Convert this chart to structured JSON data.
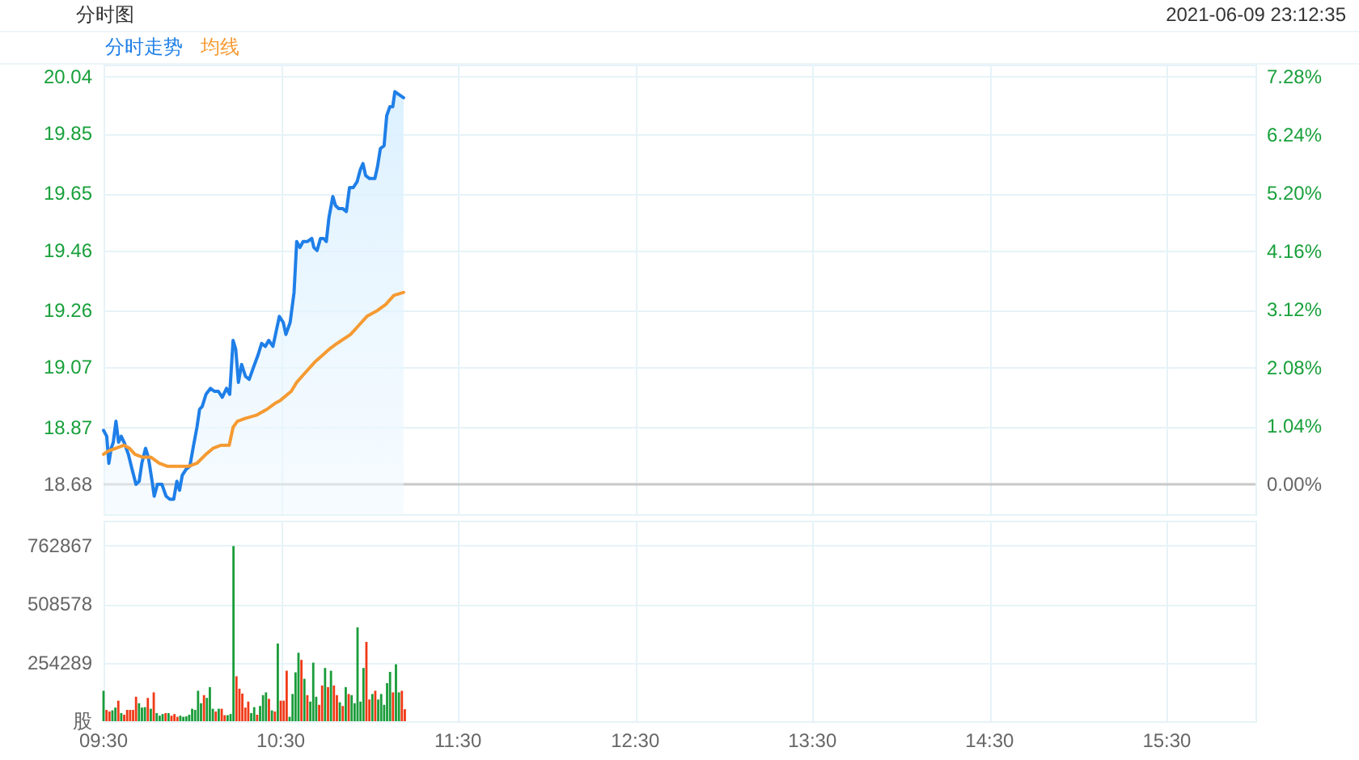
{
  "chart_data": [
    {
      "type": "line",
      "title": "分时图",
      "annotations": [
        "2021-06-09 23:12:35"
      ],
      "legend": "top left",
      "grid": true,
      "tick_labels": "y",
      "xlim": [
        9.5,
        16
      ],
      "ylim": [
        18.58,
        20.08
      ],
      "yticks": [
        {
          "value": 18.68,
          "label": "18.68"
        },
        {
          "value": 18.87,
          "label": "18.87"
        },
        {
          "value": 19.07,
          "label": "19.07"
        },
        {
          "value": 19.26,
          "label": "19.26"
        },
        {
          "value": 19.46,
          "label": "19.46"
        },
        {
          "value": 19.65,
          "label": "19.65"
        },
        {
          "value": 19.85,
          "label": "19.85"
        },
        {
          "value": 20.04,
          "label": "20.04"
        }
      ],
      "y2lim": [
        -0.54,
        7.49
      ],
      "y2ticks": [
        {
          "value": 0,
          "label": "0.00%"
        },
        {
          "value": 1.04,
          "label": "1.04%"
        },
        {
          "value": 2.08,
          "label": "2.08%"
        },
        {
          "value": 3.12,
          "label": "3.12%"
        },
        {
          "value": 4.16,
          "label": "4.16%"
        },
        {
          "value": 5.2,
          "label": "5.20%"
        },
        {
          "value": 6.24,
          "label": "6.24%"
        },
        {
          "value": 7.28,
          "label": "7.28%"
        }
      ],
      "ref_lines": [
        {
          "axis": "y",
          "value": 18.68,
          "color": "#c8c8c8"
        }
      ],
      "series": [
        {
          "name": "分时走势",
          "type": "area",
          "color": "#1f7fe8",
          "x": [
            9.5,
            9.518,
            9.53,
            9.543,
            9.555,
            9.57,
            9.585,
            9.6,
            9.616,
            9.64,
            9.661,
            9.683,
            9.701,
            9.716,
            9.737,
            9.753,
            9.774,
            9.786,
            9.804,
            9.829,
            9.853,
            9.874,
            9.896,
            9.914,
            9.929,
            9.944,
            9.966,
            9.987,
            10.005,
            10.027,
            10.042,
            10.057,
            10.078,
            10.103,
            10.127,
            10.148,
            10.17,
            10.194,
            10.212,
            10.231,
            10.246,
            10.261,
            10.279,
            10.301,
            10.322,
            10.346,
            10.371,
            10.392,
            10.413,
            10.432,
            10.456,
            10.474,
            10.492,
            10.514,
            10.529,
            10.553,
            10.575,
            10.59,
            10.608,
            10.626,
            10.651,
            10.675,
            10.687,
            10.705,
            10.724,
            10.742,
            10.757,
            10.772,
            10.794,
            10.809,
            10.827,
            10.849,
            10.87,
            10.888,
            10.909,
            10.931,
            10.949,
            10.964,
            10.979,
            11.001,
            11.031,
            11.046,
            11.062,
            11.083,
            11.098,
            11.116,
            11.132,
            11.144,
            11.168,
            11.193
          ],
          "values": [
            18.86,
            18.84,
            18.75,
            18.8,
            18.82,
            18.89,
            18.82,
            18.84,
            18.82,
            18.78,
            18.73,
            18.68,
            18.69,
            18.75,
            18.8,
            18.77,
            18.69,
            18.64,
            18.68,
            18.68,
            18.64,
            18.63,
            18.63,
            18.69,
            18.66,
            18.71,
            18.73,
            18.74,
            18.8,
            18.87,
            18.93,
            18.94,
            18.98,
            19.0,
            18.99,
            18.99,
            18.97,
            19.0,
            18.98,
            19.16,
            19.13,
            19.02,
            19.08,
            19.04,
            19.03,
            19.07,
            19.11,
            19.15,
            19.14,
            19.16,
            19.14,
            19.19,
            19.24,
            19.22,
            19.18,
            19.22,
            19.32,
            19.49,
            19.47,
            19.49,
            19.49,
            19.5,
            19.47,
            19.46,
            19.5,
            19.5,
            19.49,
            19.57,
            19.64,
            19.61,
            19.6,
            19.6,
            19.59,
            19.67,
            19.67,
            19.69,
            19.73,
            19.75,
            19.71,
            19.7,
            19.7,
            19.74,
            19.8,
            19.81,
            19.91,
            19.94,
            19.94,
            19.99,
            19.98,
            19.97
          ]
        },
        {
          "name": "均线",
          "type": "line",
          "color": "#f59a32",
          "x": [
            9.5,
            9.524,
            9.57,
            9.616,
            9.646,
            9.677,
            9.722,
            9.768,
            9.814,
            9.859,
            9.92,
            9.981,
            10.027,
            10.078,
            10.118,
            10.164,
            10.209,
            10.231,
            10.255,
            10.301,
            10.361,
            10.422,
            10.468,
            10.498,
            10.559,
            10.59,
            10.635,
            10.696,
            10.772,
            10.818,
            10.894,
            10.94,
            10.986,
            11.046,
            11.092,
            11.138,
            11.193
          ],
          "values": [
            18.78,
            18.79,
            18.8,
            18.81,
            18.8,
            18.78,
            18.77,
            18.77,
            18.75,
            18.74,
            18.74,
            18.74,
            18.75,
            18.78,
            18.8,
            18.81,
            18.81,
            18.87,
            18.89,
            18.9,
            18.91,
            18.93,
            18.95,
            18.96,
            18.99,
            19.02,
            19.05,
            19.09,
            19.13,
            19.15,
            19.18,
            19.21,
            19.24,
            19.26,
            19.28,
            19.31,
            19.32
          ]
        }
      ]
    },
    {
      "type": "bar",
      "grid": true,
      "xlim": [
        9.5,
        16
      ],
      "xticks": [
        {
          "value": 9.5,
          "label": "09:30"
        },
        {
          "value": 10.5,
          "label": "10:30"
        },
        {
          "value": 11.5,
          "label": "11:30"
        },
        {
          "value": 12.5,
          "label": "12:30"
        },
        {
          "value": 13.5,
          "label": "13:30"
        },
        {
          "value": 14.5,
          "label": "14:30"
        },
        {
          "value": 15.5,
          "label": "15:30"
        }
      ],
      "ylim": [
        0,
        870000
      ],
      "yticks": [
        {
          "value": 0,
          "label": "股"
        },
        254289,
        508578,
        762867
      ],
      "x": [
        9.5,
        9.5167,
        9.5333,
        9.55,
        9.5667,
        9.5833,
        9.6,
        9.6167,
        9.6333,
        9.65,
        9.6667,
        9.6833,
        9.7,
        9.7167,
        9.7333,
        9.75,
        9.7667,
        9.7833,
        9.8,
        9.8167,
        9.8333,
        9.85,
        9.8667,
        9.8833,
        9.9,
        9.9167,
        9.9333,
        9.95,
        9.9667,
        9.9833,
        10.0,
        10.0167,
        10.0333,
        10.05,
        10.0667,
        10.0833,
        10.1,
        10.1167,
        10.1333,
        10.15,
        10.1667,
        10.1833,
        10.2,
        10.2167,
        10.2333,
        10.25,
        10.2667,
        10.2833,
        10.3,
        10.3167,
        10.3333,
        10.35,
        10.3667,
        10.3833,
        10.4,
        10.4167,
        10.4333,
        10.45,
        10.4667,
        10.4833,
        10.5,
        10.5167,
        10.5333,
        10.55,
        10.5667,
        10.5833,
        10.6,
        10.6167,
        10.6333,
        10.65,
        10.6667,
        10.6833,
        10.7,
        10.7167,
        10.7333,
        10.75,
        10.7667,
        10.7833,
        10.8,
        10.8167,
        10.8333,
        10.85,
        10.8667,
        10.8833,
        10.9,
        10.9167,
        10.9333,
        10.95,
        10.9667,
        10.9833,
        11.0,
        11.0167,
        11.0333,
        11.05,
        11.0667,
        11.0833,
        11.1,
        11.1167,
        11.1333,
        11.15,
        11.1667,
        11.1833,
        11.2
      ],
      "values": [
        132000,
        49000,
        42000,
        47000,
        59000,
        89000,
        35000,
        28000,
        49000,
        49000,
        49000,
        106000,
        78000,
        59000,
        61000,
        101000,
        54000,
        125000,
        35000,
        24000,
        31000,
        35000,
        35000,
        24000,
        31000,
        19000,
        24000,
        19000,
        21000,
        28000,
        54000,
        49000,
        132000,
        78000,
        113000,
        101000,
        148000,
        54000,
        42000,
        54000,
        54000,
        26000,
        26000,
        31000,
        760000,
        195000,
        141000,
        120000,
        59000,
        85000,
        35000,
        61000,
        28000,
        66000,
        113000,
        125000,
        97000,
        47000,
        42000,
        337000,
        89000,
        89000,
        219000,
        19000,
        118000,
        212000,
        297000,
        266000,
        184000,
        113000,
        85000,
        254000,
        106000,
        71000,
        155000,
        231000,
        148000,
        219000,
        155000,
        113000,
        82000,
        66000,
        148000,
        118000,
        113000,
        78000,
        407000,
        85000,
        231000,
        344000,
        94000,
        118000,
        132000,
        94000,
        118000,
        71000,
        165000,
        214000,
        125000,
        247000,
        125000,
        132000,
        52000
      ],
      "colors": [
        "#1a9c3a",
        "#f03a17",
        "#f03a17",
        "#1a9c3a",
        "#1a9c3a",
        "#f03a17",
        "#1a9c3a",
        "#f03a17",
        "#f03a17",
        "#f03a17",
        "#f03a17",
        "#f03a17",
        "#1a9c3a",
        "#1a9c3a",
        "#1a9c3a",
        "#f03a17",
        "#1a9c3a",
        "#f03a17",
        "#1a9c3a",
        "#1a9c3a",
        "#1a9c3a",
        "#f03a17",
        "#1a9c3a",
        "#f03a17",
        "#f03a17",
        "#f03a17",
        "#1a9c3a",
        "#1a9c3a",
        "#1a9c3a",
        "#1a9c3a",
        "#1a9c3a",
        "#1a9c3a",
        "#1a9c3a",
        "#1a9c3a",
        "#f03a17",
        "#1a9c3a",
        "#1a9c3a",
        "#1a9c3a",
        "#f03a17",
        "#1a9c3a",
        "#f03a17",
        "#f03a17",
        "#1a9c3a",
        "#1a9c3a",
        "#1a9c3a",
        "#f03a17",
        "#f03a17",
        "#f03a17",
        "#f03a17",
        "#f03a17",
        "#1a9c3a",
        "#1a9c3a",
        "#f03a17",
        "#1a9c3a",
        "#1a9c3a",
        "#1a9c3a",
        "#f03a17",
        "#1a9c3a",
        "#f03a17",
        "#1a9c3a",
        "#f03a17",
        "#f03a17",
        "#f03a17",
        "#1a9c3a",
        "#1a9c3a",
        "#1a9c3a",
        "#1a9c3a",
        "#f03a17",
        "#1a9c3a",
        "#f03a17",
        "#1a9c3a",
        "#1a9c3a",
        "#1a9c3a",
        "#f03a17",
        "#f03a17",
        "#1a9c3a",
        "#f03a17",
        "#1a9c3a",
        "#f03a17",
        "#f03a17",
        "#1a9c3a",
        "#f03a17",
        "#1a9c3a",
        "#f03a17",
        "#1a9c3a",
        "#1a9c3a",
        "#1a9c3a",
        "#1a9c3a",
        "#1a9c3a",
        "#f03a17",
        "#f03a17",
        "#1a9c3a",
        "#f03a17",
        "#1a9c3a",
        "#1a9c3a",
        "#1a9c3a",
        "#1a9c3a",
        "#1a9c3a",
        "#f03a17",
        "#1a9c3a",
        "#1a9c3a",
        "#f03a17",
        "#f03a17"
      ]
    }
  ]
}
